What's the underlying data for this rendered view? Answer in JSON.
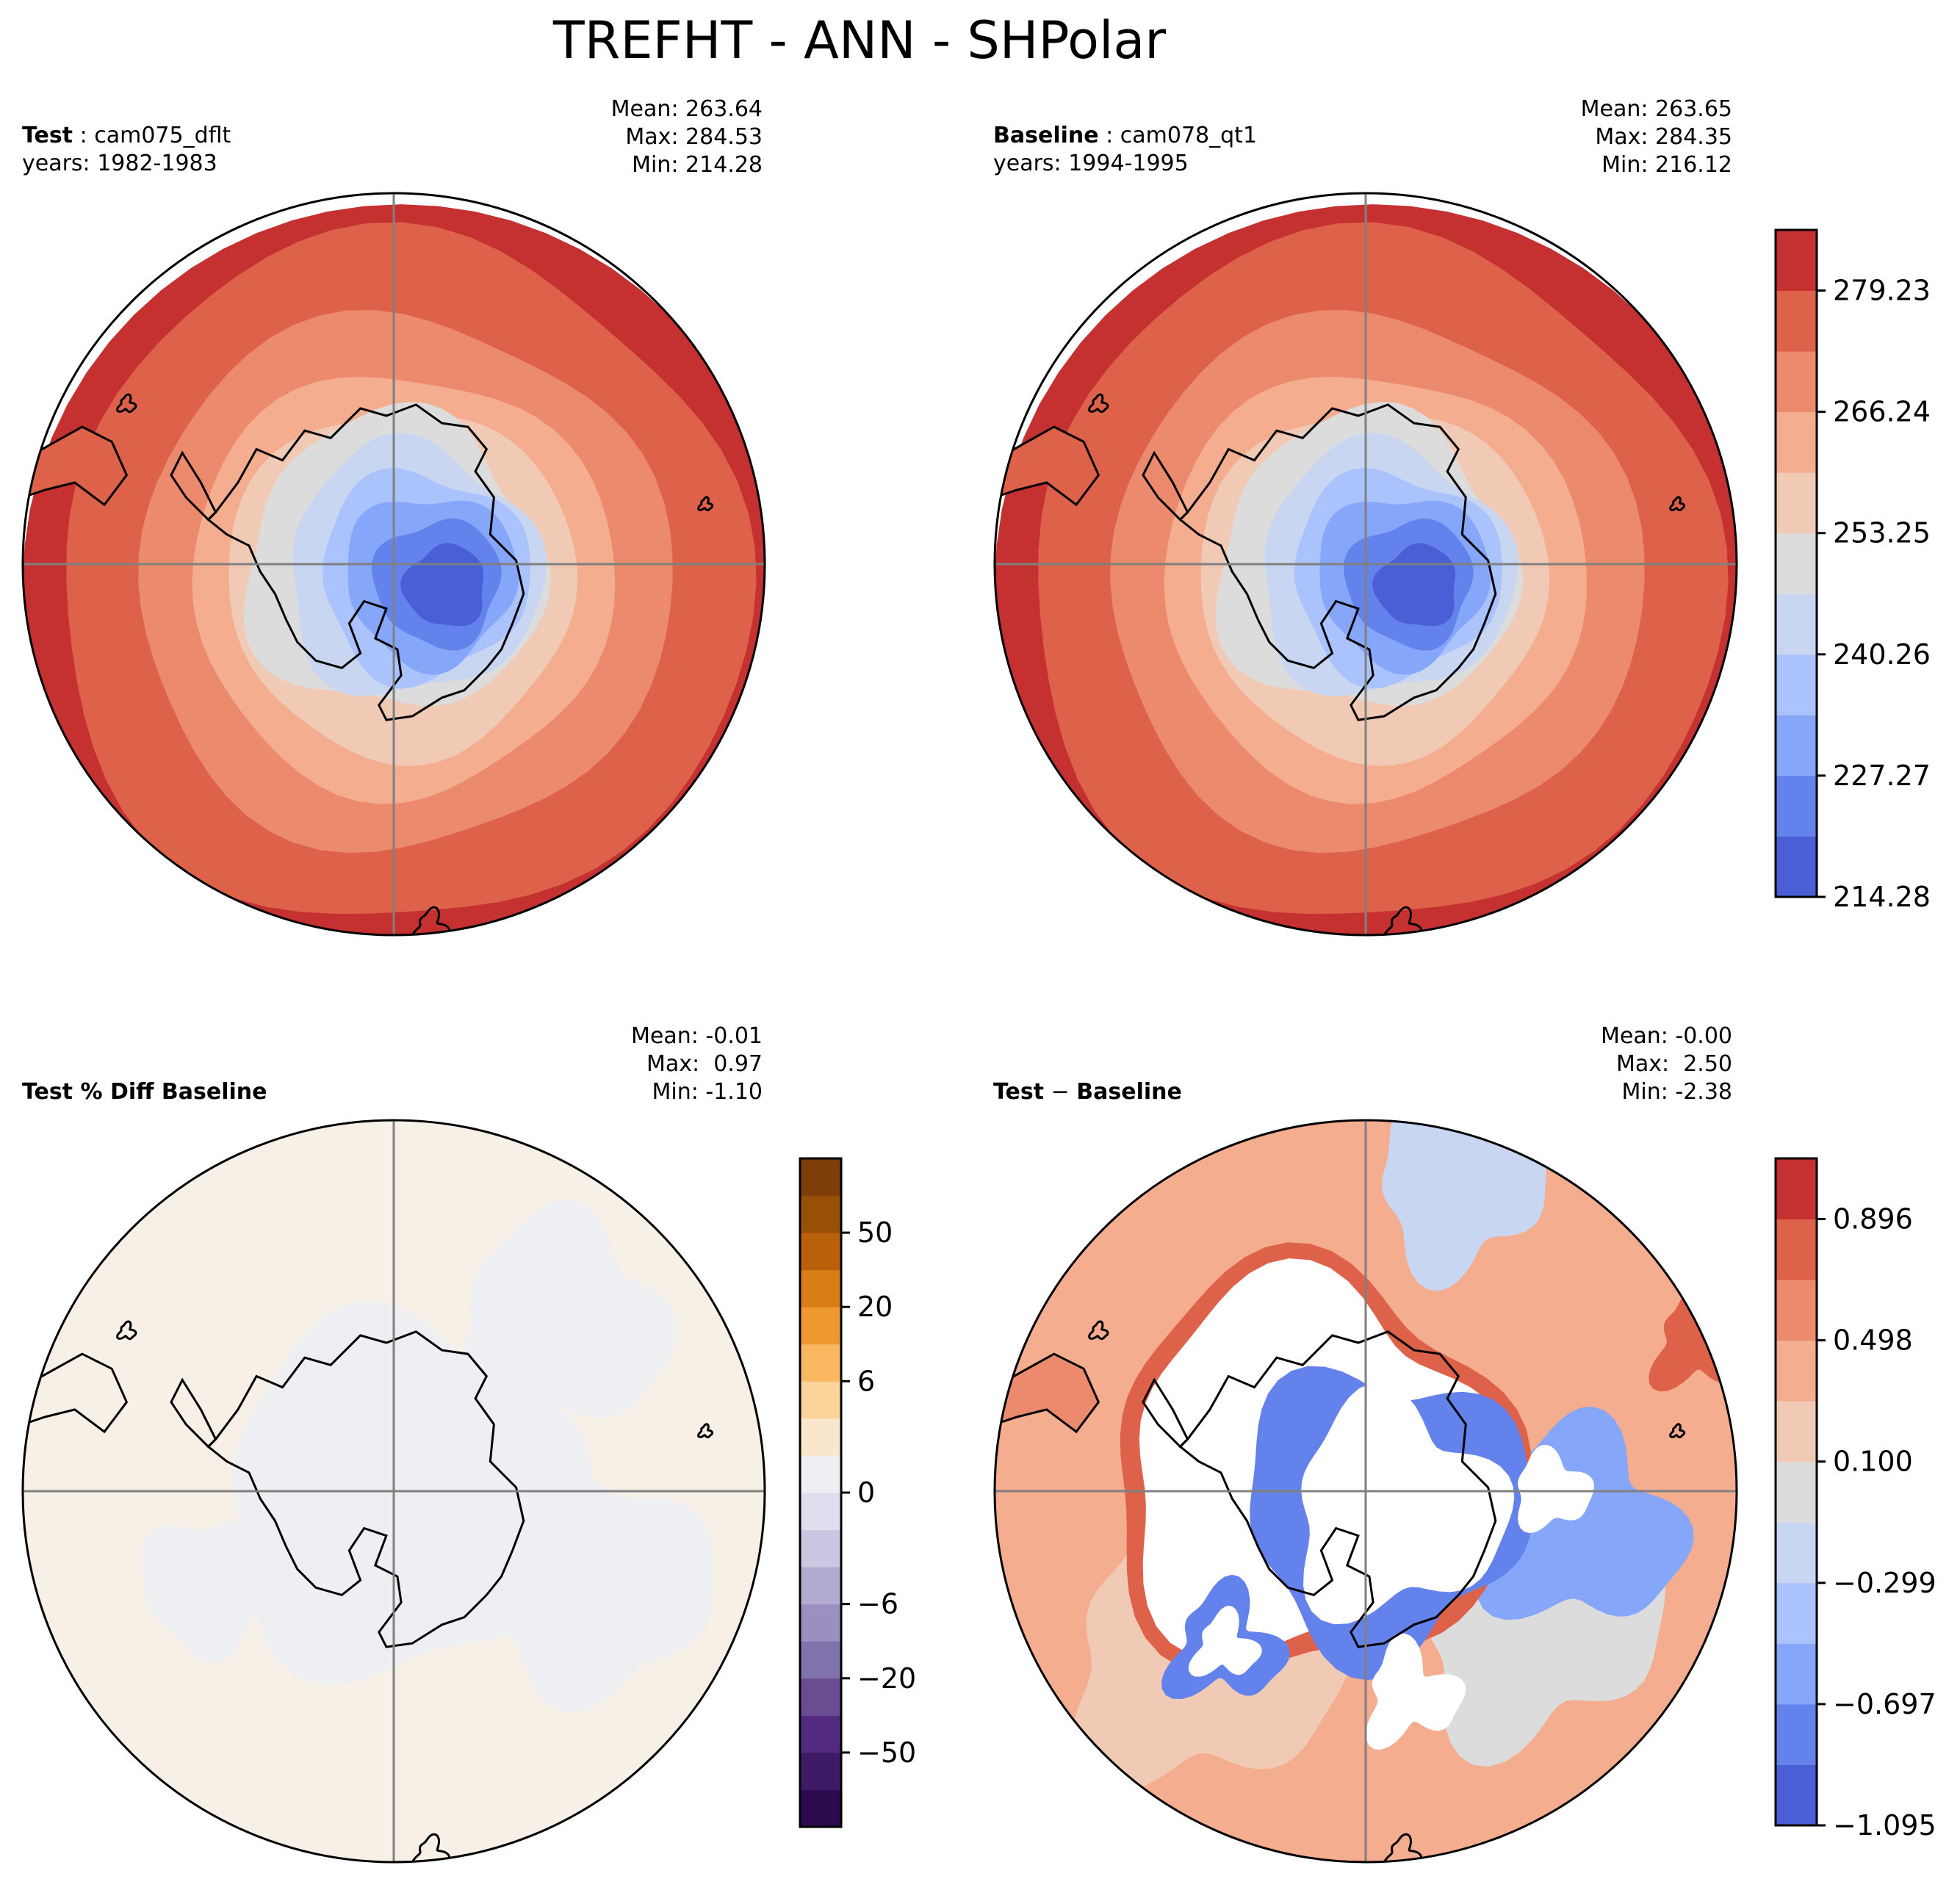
{
  "figure_title": "TREFHT - ANN - SHPolar",
  "colors": {
    "coolwarm": [
      "#4a5fd6",
      "#6482ec",
      "#86a6fa",
      "#aac3fc",
      "#c8d6f2",
      "#dcdcdc",
      "#f1cab6",
      "#f5ad90",
      "#ec8a6d",
      "#de6249",
      "#c53030"
    ],
    "coolwarm_diff": [
      "#4a5fd6",
      "#6482ec",
      "#86a6fa",
      "#aac3fc",
      "#c8d6f2",
      "#dcdcdc",
      "#f1cab6",
      "#f5ad90",
      "#ec8a6d",
      "#de6249",
      "#c53030"
    ],
    "puor": [
      "#2d0a4e",
      "#3e1a67",
      "#522a80",
      "#6a4c93",
      "#8072aa",
      "#9a8fc0",
      "#b3aad2",
      "#cbc6e2",
      "#e0ddee",
      "#eeeff3",
      "#f8e7cc",
      "#fcd39a",
      "#f9b860",
      "#ee9a30",
      "#d97e15",
      "#b9600b",
      "#985006",
      "#7d3e08"
    ]
  },
  "panels": {
    "test": {
      "name_label": "Test",
      "name": "cam075_dflt",
      "years": "years: 1982-1983",
      "mean": "Mean: 263.64",
      "max": "Max: 284.53",
      "min": "Min: 214.28"
    },
    "baseline": {
      "name_label": "Baseline",
      "name": "cam078_qt1",
      "years": "years: 1994-1995",
      "mean": "Mean: 263.65",
      "max": "Max: 284.35",
      "min": "Min: 216.12"
    },
    "pctdiff": {
      "title": "Test % Diff Baseline",
      "mean": "Mean: -0.01",
      "max": "Max:  0.97",
      "min": "Min: -1.10"
    },
    "diff": {
      "title_a": "Test",
      "title_sep": "−",
      "title_b": "Baseline",
      "mean": "Mean: -0.00",
      "max": "Max:  2.50",
      "min": "Min: -2.38"
    }
  },
  "chart_data": [
    {
      "type": "heatmap",
      "title": "Test: cam075_dflt",
      "projection": "south polar stereographic",
      "field": "TREFHT",
      "range": [
        214.28,
        284.53
      ],
      "levels": [
        214.28,
        220.77,
        227.27,
        233.76,
        240.26,
        246.75,
        253.25,
        259.74,
        266.24,
        272.73,
        279.23,
        285.72
      ],
      "pattern": "cold minimum over East Antarctica interior, warming concentrically outward to about 284 at the outer circle"
    },
    {
      "type": "heatmap",
      "title": "Baseline: cam078_qt1",
      "projection": "south polar stereographic",
      "field": "TREFHT",
      "range": [
        216.12,
        284.35
      ],
      "levels": [
        214.28,
        220.77,
        227.27,
        233.76,
        240.26,
        246.75,
        253.25,
        259.74,
        266.24,
        272.73,
        279.23,
        285.72
      ],
      "colorbar_ticks": [
        "214.28",
        "227.27",
        "240.26",
        "253.25",
        "266.24",
        "279.23"
      ]
    },
    {
      "type": "heatmap",
      "title": "Test % Diff Baseline",
      "projection": "south polar stereographic",
      "range": [
        -1.1,
        0.97
      ],
      "colorbar_ticks": [
        "−50",
        "−20",
        "−6",
        "0",
        "6",
        "20",
        "50"
      ],
      "pattern": "near-zero everywhere; faint negative over Antarctica and parts of the Southern Ocean"
    },
    {
      "type": "heatmap",
      "title": "Test − Baseline",
      "projection": "south polar stereographic",
      "range": [
        -2.38,
        2.5
      ],
      "colorbar_ticks": [
        "−1.095",
        "−0.697",
        "−0.299",
        "0.100",
        "0.498",
        "0.896"
      ],
      "pattern": "positive (red) over most of the Southern Ocean, negative (blue) bands and out-of-range (white) patches around the Antarctic coast"
    }
  ]
}
